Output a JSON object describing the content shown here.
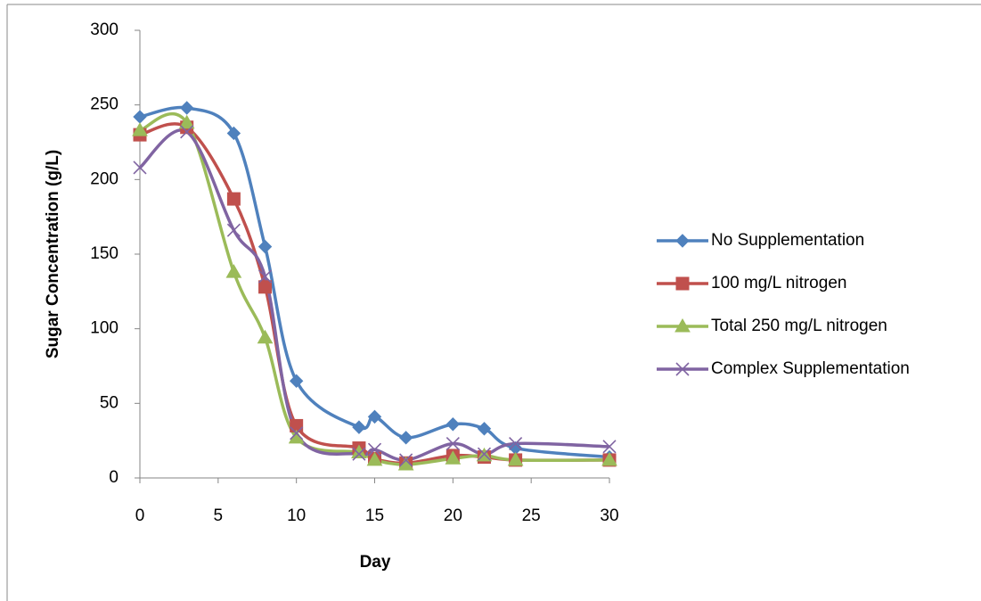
{
  "chart_data": {
    "type": "line",
    "x_label": "Day",
    "y_label": "Sugar Concentration (g/L)",
    "x": [
      0,
      3,
      6,
      8,
      10,
      14,
      15,
      17,
      20,
      22,
      24,
      30
    ],
    "series": [
      {
        "name": "No Supplementation",
        "color": "#4F81BD",
        "marker": "diamond",
        "values": [
          242,
          248,
          231,
          155,
          65,
          34,
          41,
          27,
          36,
          33,
          20,
          14
        ]
      },
      {
        "name": "100 mg/L nitrogen",
        "color": "#C0504D",
        "marker": "square",
        "values": [
          230,
          235,
          187,
          128,
          35,
          20,
          13,
          10,
          15,
          14,
          12,
          12
        ]
      },
      {
        "name": "Total 250 mg/L nitrogen",
        "color": "#9BBB59",
        "marker": "triangle",
        "values": [
          233,
          238,
          138,
          94,
          27,
          17,
          12,
          9,
          13,
          15,
          12,
          12
        ]
      },
      {
        "name": "Complex Supplementation",
        "color": "#8064A2",
        "marker": "x",
        "values": [
          208,
          232,
          166,
          135,
          30,
          16,
          19,
          12,
          23,
          16,
          23,
          21
        ]
      }
    ],
    "xlim": [
      0,
      30
    ],
    "xticks": [
      0,
      5,
      10,
      15,
      20,
      25,
      30
    ],
    "ylim": [
      0,
      300
    ],
    "yticks": [
      0,
      50,
      100,
      150,
      200,
      250,
      300
    ],
    "grid": false,
    "smooth": true,
    "legend": "right"
  }
}
